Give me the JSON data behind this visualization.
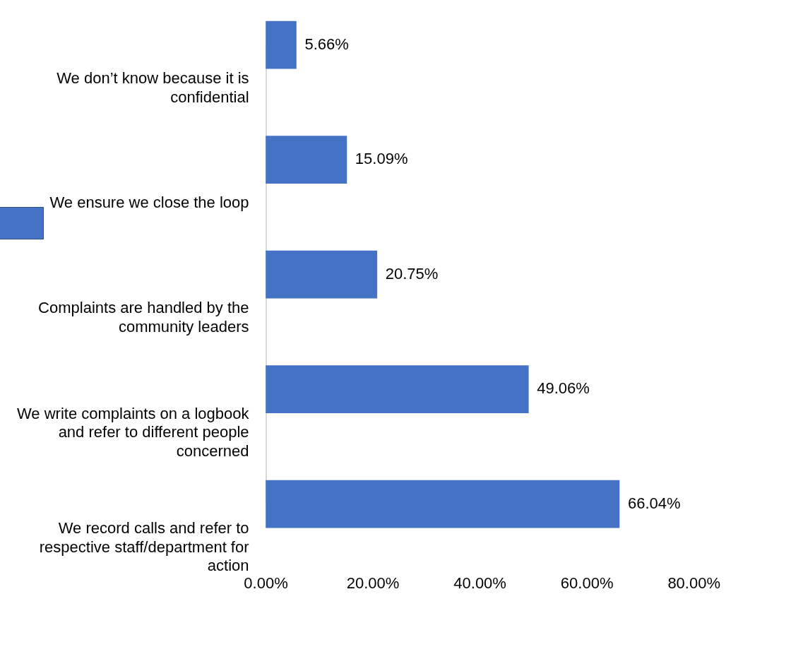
{
  "chart_data": {
    "type": "bar",
    "orientation": "horizontal",
    "categories": [
      "We don’t know because it is confidential",
      "We ensure we close the loop",
      "Complaints are handled by the community leaders",
      "We write complaints on a logbook and refer to different people concerned",
      "We record calls and refer to respective staff/department for action"
    ],
    "values": [
      5.66,
      15.09,
      20.75,
      49.06,
      66.04
    ],
    "value_labels": [
      "5.66%",
      "15.09%",
      "20.75%",
      "49.06%",
      "66.04%"
    ],
    "color": "#4472c4",
    "xlim": [
      0,
      80
    ],
    "xticks": [
      {
        "value": 0,
        "label": "0.00%"
      },
      {
        "value": 20,
        "label": "20.00%"
      },
      {
        "value": 40,
        "label": "40.00%"
      },
      {
        "value": 60,
        "label": "60.00%"
      },
      {
        "value": 80,
        "label": "80.00%"
      }
    ],
    "grid": false
  }
}
